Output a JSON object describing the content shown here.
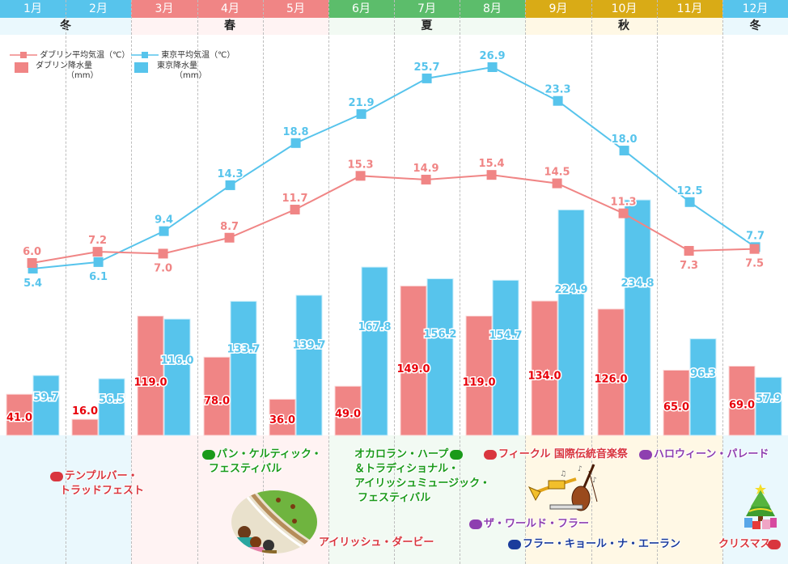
{
  "colors": {
    "dublin": "#f08585",
    "tokyo": "#57c4ec",
    "dublin_label": "#e8000a",
    "winter_header": "#57c4ec",
    "spring_header": "#f08585",
    "summer_header": "#5cbd6b",
    "autumn_header": "#d9ab16",
    "winter_bg": "#eaf8fd",
    "spring_bg": "#fff3f3",
    "summer_bg": "#f2faf3",
    "autumn_bg": "#fff8e5"
  },
  "months": [
    "1月",
    "2月",
    "3月",
    "4月",
    "5月",
    "6月",
    "7月",
    "8月",
    "9月",
    "10月",
    "11月",
    "12月"
  ],
  "month_seasons": [
    "winter",
    "winter",
    "spring",
    "spring",
    "spring",
    "summer",
    "summer",
    "summer",
    "autumn",
    "autumn",
    "autumn",
    "winter"
  ],
  "seasons": [
    {
      "label": "冬",
      "key": "winter",
      "from": 0,
      "to": 1
    },
    {
      "label": "春",
      "key": "spring",
      "from": 2,
      "to": 4
    },
    {
      "label": "夏",
      "key": "summer",
      "from": 5,
      "to": 7
    },
    {
      "label": "秋",
      "key": "autumn",
      "from": 8,
      "to": 10
    },
    {
      "label": "冬",
      "key": "winter",
      "from": 11,
      "to": 11
    }
  ],
  "legend": {
    "dublin_temp": "ダブリン平均気温（℃）",
    "dublin_precip": "ダブリン降水量",
    "dublin_precip_unit": "（mm）",
    "tokyo_temp": "東京平均気温（℃）",
    "tokyo_precip": "東京降水量",
    "tokyo_precip_unit": "（mm）"
  },
  "chart_data": {
    "type": "bar",
    "title": "",
    "categories": [
      "1月",
      "2月",
      "3月",
      "4月",
      "5月",
      "6月",
      "7月",
      "8月",
      "9月",
      "10月",
      "11月",
      "12月"
    ],
    "xlabel": "",
    "ylabel": "",
    "grid": "vertical dashed",
    "legend_position": "top-left",
    "series": [
      {
        "name": "ダブリン降水量（mm）",
        "type": "bar",
        "unit": "mm",
        "values": [
          41.0,
          16.0,
          119.0,
          78.0,
          36.0,
          49.0,
          149.0,
          119.0,
          134.0,
          126.0,
          65.0,
          69.0
        ]
      },
      {
        "name": "東京降水量（mm）",
        "type": "bar",
        "unit": "mm",
        "values": [
          59.7,
          56.5,
          116.0,
          133.7,
          139.7,
          167.8,
          156.2,
          154.7,
          224.9,
          234.8,
          96.3,
          57.9
        ]
      },
      {
        "name": "ダブリン平均気温（℃）",
        "type": "line",
        "unit": "℃",
        "values": [
          6.0,
          7.2,
          7.0,
          8.7,
          11.7,
          15.3,
          14.9,
          15.4,
          14.5,
          11.3,
          7.3,
          7.5
        ]
      },
      {
        "name": "東京平均気温（℃）",
        "type": "line",
        "unit": "℃",
        "values": [
          5.4,
          6.1,
          9.4,
          14.3,
          18.8,
          21.9,
          25.7,
          26.9,
          23.3,
          18.0,
          12.5,
          7.7
        ]
      }
    ],
    "precip_range": [
      0,
      240
    ],
    "temp_range": [
      0,
      28
    ]
  },
  "events": [
    {
      "id": "temple-bar",
      "lines": [
        "テンプルバー・",
        "トラッドフェスト"
      ],
      "color": "red",
      "pill": "left"
    },
    {
      "id": "pan-celtic",
      "lines": [
        "パン・ケルティック・",
        "フェスティバル"
      ],
      "color": "green",
      "pill": "left"
    },
    {
      "id": "irish-derby",
      "lines": [
        "アイリッシュ・ダービー"
      ],
      "color": "red",
      "pill": "inline"
    },
    {
      "id": "oconnor-harp",
      "lines": [
        "オカロラン・ハープ",
        "＆トラディショナル・",
        "アイリッシュミュージック・",
        "フェスティバル"
      ],
      "color": "green",
      "pill": "right"
    },
    {
      "id": "fleadh",
      "lines": [
        "フィークル 国際伝統音楽祭"
      ],
      "color": "red",
      "pill": "left"
    },
    {
      "id": "halloween",
      "lines": [
        "ハロウィーン・パレード"
      ],
      "color": "purple",
      "pill": "left"
    },
    {
      "id": "world-fleadh",
      "lines": [
        "ザ・ワールド・フラー"
      ],
      "color": "purple",
      "pill": "left"
    },
    {
      "id": "fleadh-cheoil",
      "lines": [
        "フラー・キョール・ナ・エーラン"
      ],
      "color": "blue",
      "pill": "left"
    },
    {
      "id": "christmas",
      "lines": [
        "クリスマス"
      ],
      "color": "red",
      "pill": "right"
    }
  ],
  "illustrations": [
    {
      "id": "horse-race",
      "icon": "horse-racing-illustration"
    },
    {
      "id": "instruments",
      "icon": "music-instruments-illustration"
    },
    {
      "id": "xmas-tree",
      "icon": "christmas-tree-illustration"
    }
  ]
}
